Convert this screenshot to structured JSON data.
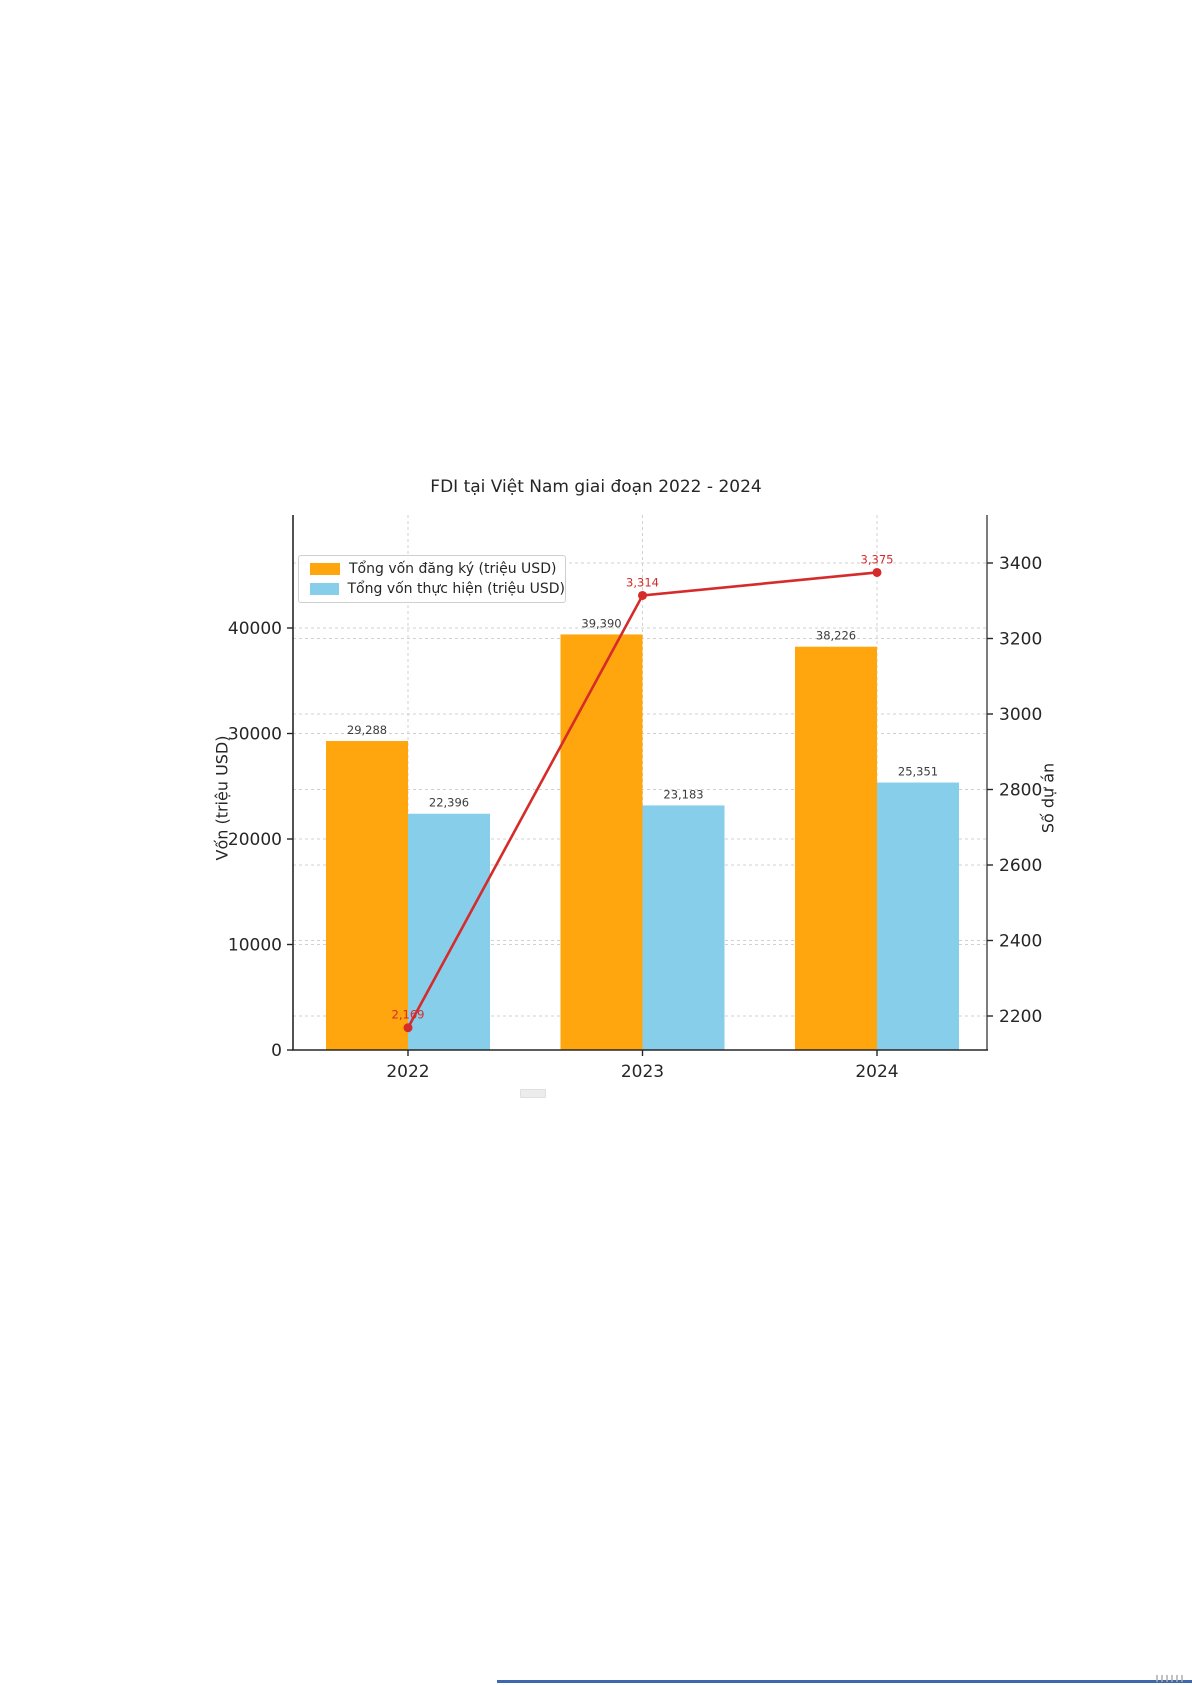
{
  "chart_data": {
    "type": "combo-bar-line",
    "title": "FDI tại Việt Nam giai đoạn 2022 - 2024",
    "categories": [
      "2022",
      "2023",
      "2024"
    ],
    "series": [
      {
        "name": "Tổng vốn đăng ký (triệu USD)",
        "type": "bar",
        "axis": "left",
        "color": "#FFA50E",
        "values": [
          29288,
          39390,
          38226
        ],
        "value_labels": [
          "29,288",
          "39,390",
          "38,226"
        ]
      },
      {
        "name": "Tổng vốn thực hiện (triệu USD)",
        "type": "bar",
        "axis": "left",
        "color": "#87CEEB",
        "values": [
          22396,
          23183,
          25351
        ],
        "value_labels": [
          "22,396",
          "23,183",
          "25,351"
        ]
      },
      {
        "name": "Số dự án",
        "type": "line",
        "axis": "right",
        "color": "#D62B2B",
        "values": [
          2169,
          3314,
          3375
        ],
        "value_labels": [
          "2,169",
          "3,314",
          "3,375"
        ]
      }
    ],
    "left_axis": {
      "label": "Vốn (triệu USD)",
      "ticks": [
        0,
        10000,
        20000,
        30000,
        40000
      ],
      "tick_labels": [
        "0",
        "10000",
        "20000",
        "30000",
        "40000"
      ]
    },
    "right_axis": {
      "label": "Số dự án",
      "ticks": [
        2200,
        2400,
        2600,
        2800,
        3000,
        3200,
        3400
      ],
      "tick_labels": [
        "2200",
        "2400",
        "2600",
        "2800",
        "3000",
        "3200",
        "3400"
      ]
    },
    "legend": {
      "position": "upper-left",
      "entries": [
        "Tổng vốn đăng ký (triệu USD)",
        "Tổng vốn thực hiện (triệu USD)"
      ]
    },
    "grid": {
      "style": "dashed",
      "color": "#c9c9c9"
    },
    "text_color": "#262626",
    "value_label_color": "#3d3d3d"
  },
  "decorations": {
    "bottom_divider_color": "#3E68AD"
  }
}
